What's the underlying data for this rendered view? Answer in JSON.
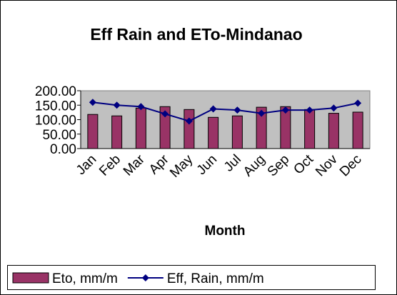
{
  "chart_data": {
    "type": "bar_line",
    "title": "Eff Rain and ETo-Mindanao",
    "x_label": "Month",
    "categories": [
      "Jan",
      "Feb",
      "Mar",
      "Apr",
      "May",
      "Jun",
      "Jul",
      "Aug",
      "Sep",
      "Oct",
      "Nov",
      "Dec"
    ],
    "series": [
      {
        "name": "Eto, mm/m",
        "type": "bar",
        "color": "#993366",
        "values": [
          118,
          113,
          140,
          145,
          135,
          108,
          113,
          143,
          145,
          135,
          122,
          126
        ]
      },
      {
        "name": "Eff, Rain, mm/m",
        "type": "line",
        "color": "#000080",
        "values": [
          160,
          150,
          145,
          120,
          95,
          137,
          133,
          122,
          133,
          133,
          140,
          157
        ]
      }
    ],
    "ylim": [
      0,
      200
    ],
    "yticks": [
      {
        "value": 0,
        "label": "0.00"
      },
      {
        "value": 50,
        "label": "50.00"
      },
      {
        "value": 100,
        "label": "100.00"
      },
      {
        "value": 150,
        "label": "150.00"
      },
      {
        "value": 200,
        "label": "200.00"
      }
    ],
    "grid": false,
    "plot_background": "#c0c0c0",
    "legend": "bottom"
  }
}
